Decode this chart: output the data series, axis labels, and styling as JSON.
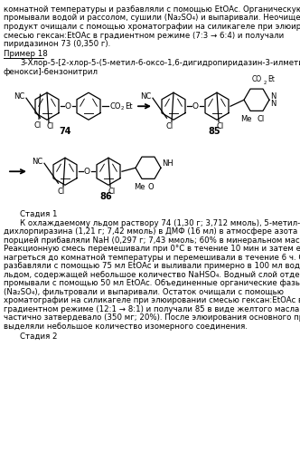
{
  "bg_color": "#ffffff",
  "fs": 6.2,
  "lh": 9.5,
  "para1": [
    "комнатной температуры и разбавляли с помощью EtOAc. Органическую фазу",
    "промывали водой и рассолом, сушили (Na₂SO₄) и выпаривали. Неочищенный",
    "продукт очищали с помощью хроматографии на силикагеле при элюировании",
    "смесью гексан:EtOAc в градиентном режиме (7:3 → 6:4) и получали",
    "пиридазинон 73 (0,350 г)."
  ],
  "example_header": "Пример 18",
  "example_title1": "3-Хлор-5-[2-хлор-5-(5-метил-6-оксо-1,6-дигидропиридазин-3-илметил)-",
  "example_title2": "фенокси]-бензонитрил",
  "label74": "74",
  "label85": "85",
  "label86": "86",
  "stage1_header": "Стадия 1",
  "stage1_para": [
    "К охлаждаемому льдом раствору 74 (1,30 г; 3,712 ммоль), 5-метил-1,4-",
    "дихлорпиразина (1,21 г; 7,42 ммоль) в ДМФ (16 мл) в атмосфере азота одной",
    "порцией прибавляли NaH (0,297 г; 7,43 ммоль; 60% в минеральном масле).",
    "Реакционную смесь перемешивали при 0°C в течение 10 мин и затем ей давали",
    "нагреться до комнатной температуры и перемешивали в течение 6 ч. Смесь",
    "разбавляли с помощью 75 мл EtOAc и выливали примерно в 100 мл воды со",
    "льдом, содержащей небольшое количество NaHSO₄. Водный слой отделяли и",
    "промывали с помощью 50 мл EtOAc. Объединенные органические фазы сушили",
    "(Na₂SO₄), фильтровали и выпаривали. Остаток очищали с помощью",
    "хроматографии на силикагеле при элюировании смесью гексан:EtOAc в",
    "градиентном режиме (12:1 → 8:1) и получали 85 в виде желтого масла, которое",
    "частично затвердевало (350 мг; 20%). После элюирования основного продукта",
    "выделяли небольшое количество изомерного соединения."
  ],
  "stage2_header": "Стадия 2"
}
